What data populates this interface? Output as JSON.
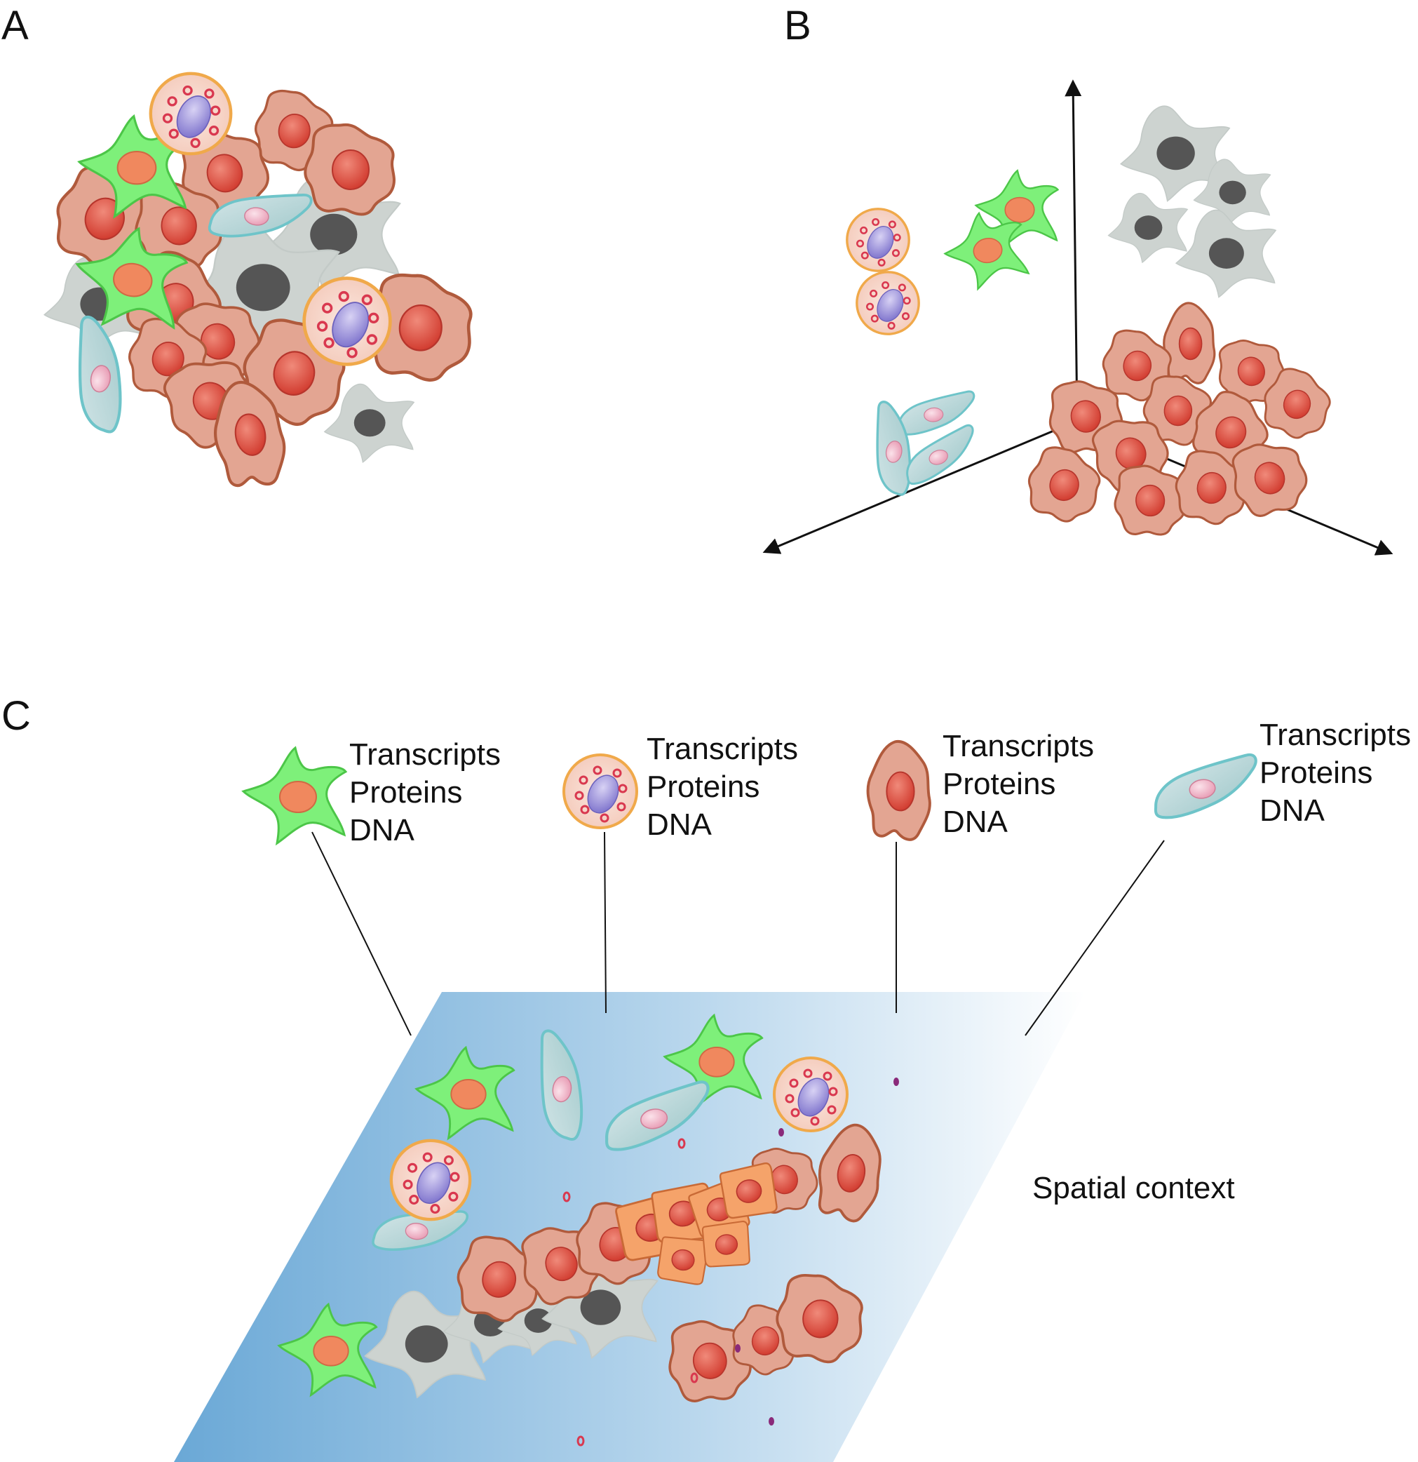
{
  "panels": {
    "a": {
      "label": "A"
    },
    "b": {
      "label": "B"
    },
    "c": {
      "label": "C"
    }
  },
  "callouts": [
    {
      "cell": "green-stellate-cell",
      "lines": [
        "Transcripts",
        "Proteins",
        "DNA"
      ]
    },
    {
      "cell": "granulocyte-cell",
      "lines": [
        "Transcripts",
        "Proteins",
        "DNA"
      ]
    },
    {
      "cell": "tumor-cell",
      "lines": [
        "Transcripts",
        "Proteins",
        "DNA"
      ]
    },
    {
      "cell": "spindle-cell",
      "lines": [
        "Transcripts",
        "Proteins",
        "DNA"
      ]
    }
  ],
  "spatial_context_label": "Spatial context",
  "colors": {
    "tumor_fill": "#e3a592",
    "tumor_stroke": "#b05a3c",
    "tumor_nucleus": "#d9453a",
    "green_fill": "#7ef07a",
    "green_nucleus": "#f0885e",
    "gray_fill": "#cdd3d0",
    "gray_nucleus": "#555555",
    "granulocyte_fill": "#f7d4c8",
    "granulocyte_stroke": "#f0a94a",
    "granulocyte_nucleus": "#9a8bd8",
    "spindle_fill": "#b9d6d8",
    "spindle_stroke": "#6ec4c9",
    "spindle_nucleus": "#f0b8c8",
    "proliferating_fill": "#f5a36a",
    "slide_dark": "#6aa8d6",
    "slide_light": "#ffffff"
  }
}
